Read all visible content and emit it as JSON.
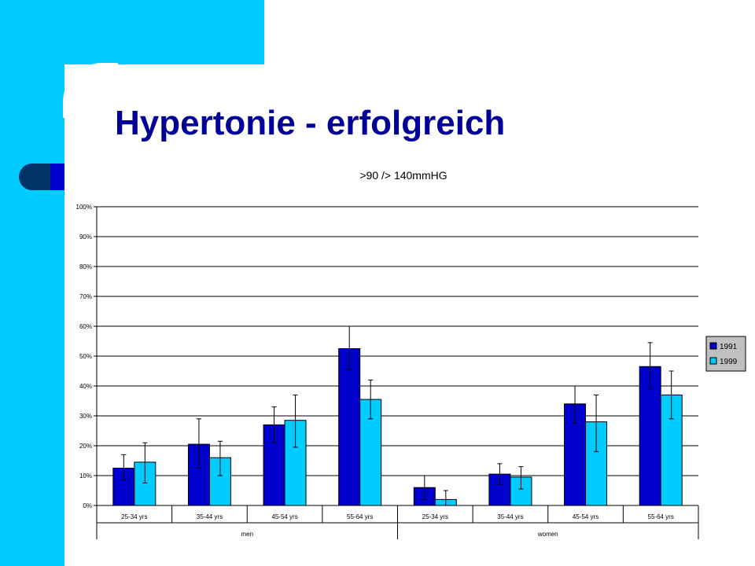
{
  "slide": {
    "title": "Hypertonie - erfolgreich"
  },
  "colors": {
    "accent": "#00ccff",
    "series_1991": "#0000cc",
    "series_1999": "#00ccff",
    "title": "#000099"
  },
  "chart_data": {
    "type": "bar",
    "title": ">90 /> 140mmHG",
    "xlabel": "",
    "ylabel": "",
    "ylim": [
      0,
      100
    ],
    "yticks": [
      "0%",
      "10%",
      "20%",
      "30%",
      "40%",
      "50%",
      "60%",
      "70%",
      "80%",
      "90%",
      "100%"
    ],
    "categories": [
      "25-34 yrs",
      "35-44 yrs",
      "45-54 yrs",
      "55-64 yrs",
      "25-34 yrs",
      "35-44 yrs",
      "45-54 yrs",
      "55-64 yrs"
    ],
    "groups": [
      {
        "label": "men",
        "categories": [
          0,
          1,
          2,
          3
        ]
      },
      {
        "label": "women",
        "categories": [
          4,
          5,
          6,
          7
        ]
      }
    ],
    "series": [
      {
        "name": "1991",
        "values": [
          12.5,
          20.5,
          27,
          52.5,
          6,
          10.5,
          34,
          46.5
        ],
        "err_low": [
          8.5,
          12.5,
          21,
          45.5,
          2,
          7,
          27.5,
          39
        ],
        "err_high": [
          17,
          29,
          33,
          60,
          10,
          14,
          40,
          54.5
        ]
      },
      {
        "name": "1999",
        "values": [
          14.5,
          16,
          28.5,
          35.5,
          2,
          9.5,
          28,
          37
        ],
        "err_low": [
          7.5,
          10,
          19.5,
          29,
          0,
          5.5,
          18,
          29
        ],
        "err_high": [
          21,
          21.5,
          37,
          42,
          5,
          13,
          37,
          45
        ]
      }
    ],
    "grid": true,
    "legend": "right"
  }
}
